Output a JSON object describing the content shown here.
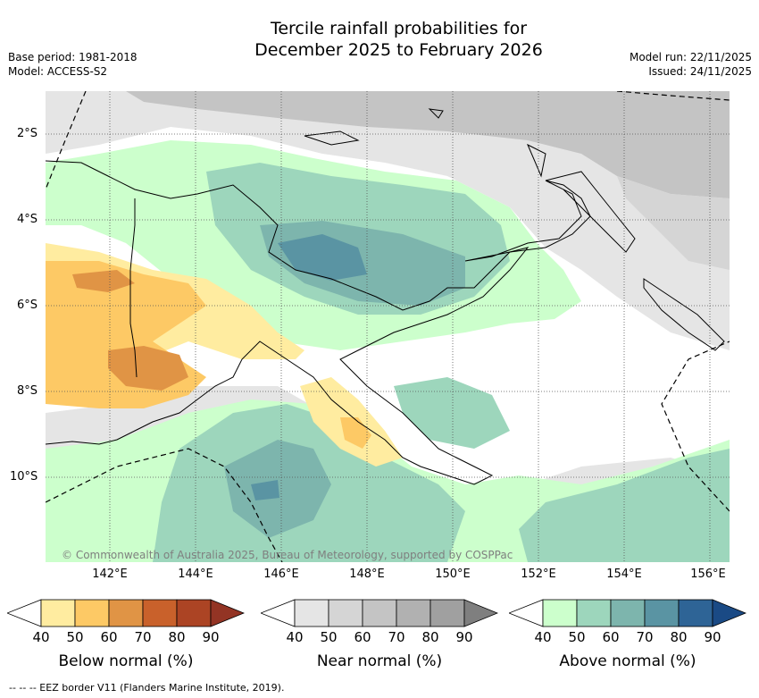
{
  "header": {
    "title_line1": "Tercile rainfall probabilities for",
    "title_line2": "December 2025 to February 2026",
    "base_period": "Base period: 1981-2018",
    "model": "Model: ACCESS-S2",
    "model_run": "Model run: 22/11/2025",
    "issued": "Issued: 24/11/2025"
  },
  "map": {
    "lat_labels": [
      "2°S",
      "4°S",
      "6°S",
      "8°S",
      "10°S"
    ],
    "lon_labels": [
      "142°E",
      "144°E",
      "146°E",
      "148°E",
      "150°E",
      "152°E",
      "154°E",
      "156°E"
    ],
    "copyright": "© Commonwealth of Australia 2025, Bureau of Meteorology, supported by COSPPac"
  },
  "legends": {
    "below": {
      "label": "Below normal (%)",
      "ticks": [
        "40",
        "50",
        "60",
        "70",
        "80",
        "90"
      ],
      "colors": [
        "#ffffff",
        "#ffeca0",
        "#fdc965",
        "#e09445",
        "#c9612b",
        "#ac4424",
        "#933424"
      ]
    },
    "near": {
      "label": "Near normal (%)",
      "ticks": [
        "40",
        "50",
        "60",
        "70",
        "80",
        "90"
      ],
      "colors": [
        "#ffffff",
        "#e5e5e5",
        "#d5d5d5",
        "#c4c4c4",
        "#b1b1b1",
        "#a0a0a0",
        "#7f7f7f"
      ]
    },
    "above": {
      "label": "Above normal (%)",
      "ticks": [
        "40",
        "50",
        "60",
        "70",
        "80",
        "90"
      ],
      "colors": [
        "#ffffff",
        "#ccffcc",
        "#9dd6bc",
        "#7db5ad",
        "#5a94a3",
        "#2e6496",
        "#1a4a85"
      ]
    }
  },
  "footnote": "--  --  -- EEZ border V11 (Flanders Marine Institute, 2019)."
}
